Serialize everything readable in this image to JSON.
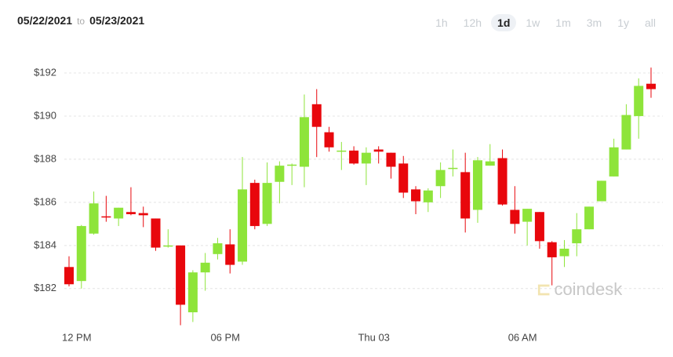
{
  "header": {
    "from": "05/22/2021",
    "separator": "to",
    "to": "05/23/2021",
    "ranges": [
      "1h",
      "12h",
      "1d",
      "1w",
      "1m",
      "3m",
      "1y",
      "all"
    ],
    "active_range": 2
  },
  "watermark": "coindesk",
  "chart_data": {
    "type": "candlestick",
    "categories": [
      null,
      "12 PM",
      null,
      null,
      null,
      null,
      null,
      null,
      null,
      null,
      null,
      null,
      null,
      "06 PM",
      null,
      null,
      null,
      null,
      null,
      null,
      null,
      null,
      null,
      null,
      null,
      "Thu 03",
      null,
      null,
      null,
      null,
      null,
      null,
      null,
      null,
      null,
      null,
      null,
      "06 AM",
      null,
      null,
      null,
      null,
      null,
      null,
      null,
      null,
      null,
      null
    ],
    "open": [
      183.0,
      182.35,
      184.55,
      185.35,
      185.25,
      185.55,
      185.5,
      185.25,
      183.95,
      184.0,
      180.9,
      182.75,
      183.6,
      184.05,
      183.25,
      186.9,
      185.0,
      186.95,
      187.7,
      187.65,
      190.55,
      189.25,
      188.35,
      188.4,
      187.8,
      188.45,
      188.3,
      187.8,
      186.6,
      186.0,
      186.75,
      187.55,
      187.4,
      185.65,
      187.7,
      188.05,
      185.65,
      185.1,
      185.55,
      184.15,
      183.5,
      184.1,
      184.75,
      186.05,
      187.2,
      188.45,
      190.0,
      191.5
    ],
    "high": [
      183.5,
      184.95,
      186.5,
      186.3,
      185.75,
      186.7,
      185.8,
      185.25,
      184.75,
      184.0,
      182.85,
      183.65,
      184.35,
      184.75,
      188.1,
      187.05,
      187.85,
      187.9,
      187.8,
      191.0,
      191.25,
      189.5,
      188.8,
      188.6,
      188.55,
      188.6,
      188.3,
      188.15,
      186.75,
      186.65,
      187.85,
      188.45,
      188.3,
      188.1,
      188.7,
      188.45,
      186.75,
      185.7,
      185.55,
      184.2,
      184.25,
      185.5,
      185.8,
      187.0,
      188.95,
      190.55,
      191.75,
      192.25
    ],
    "low": [
      182.1,
      182.0,
      184.5,
      185.1,
      184.9,
      185.4,
      184.85,
      183.75,
      183.9,
      180.3,
      180.45,
      181.9,
      183.35,
      182.7,
      183.1,
      184.75,
      184.9,
      185.95,
      186.8,
      186.7,
      188.1,
      188.35,
      187.5,
      187.75,
      186.8,
      187.8,
      187.1,
      186.2,
      185.45,
      185.55,
      186.2,
      187.2,
      184.6,
      185.05,
      187.7,
      185.85,
      184.55,
      184.0,
      183.85,
      182.15,
      183.0,
      183.5,
      184.75,
      186.05,
      187.2,
      188.45,
      188.95,
      190.85
    ],
    "close": [
      182.2,
      184.9,
      185.95,
      185.3,
      185.75,
      185.45,
      185.4,
      183.9,
      184.0,
      181.25,
      182.75,
      183.2,
      184.1,
      183.1,
      186.6,
      184.9,
      186.9,
      187.7,
      187.75,
      189.95,
      189.5,
      188.55,
      188.4,
      187.8,
      188.3,
      188.35,
      187.65,
      186.45,
      186.05,
      186.55,
      187.5,
      187.6,
      185.25,
      187.95,
      187.9,
      185.9,
      185.0,
      185.7,
      184.2,
      183.45,
      183.85,
      184.75,
      185.8,
      187.0,
      188.55,
      190.05,
      191.4,
      191.25
    ],
    "up_color": "#8ee43a",
    "down_color": "#e8070c",
    "ylim": [
      180.1,
      193.2
    ],
    "yticks": [
      {
        "value": 182,
        "label": "$182"
      },
      {
        "value": 184,
        "label": "$184"
      },
      {
        "value": 186,
        "label": "$186"
      },
      {
        "value": 188,
        "label": "$188"
      },
      {
        "value": 190,
        "label": "$190"
      },
      {
        "value": 192,
        "label": "$192"
      }
    ],
    "grid": true
  }
}
